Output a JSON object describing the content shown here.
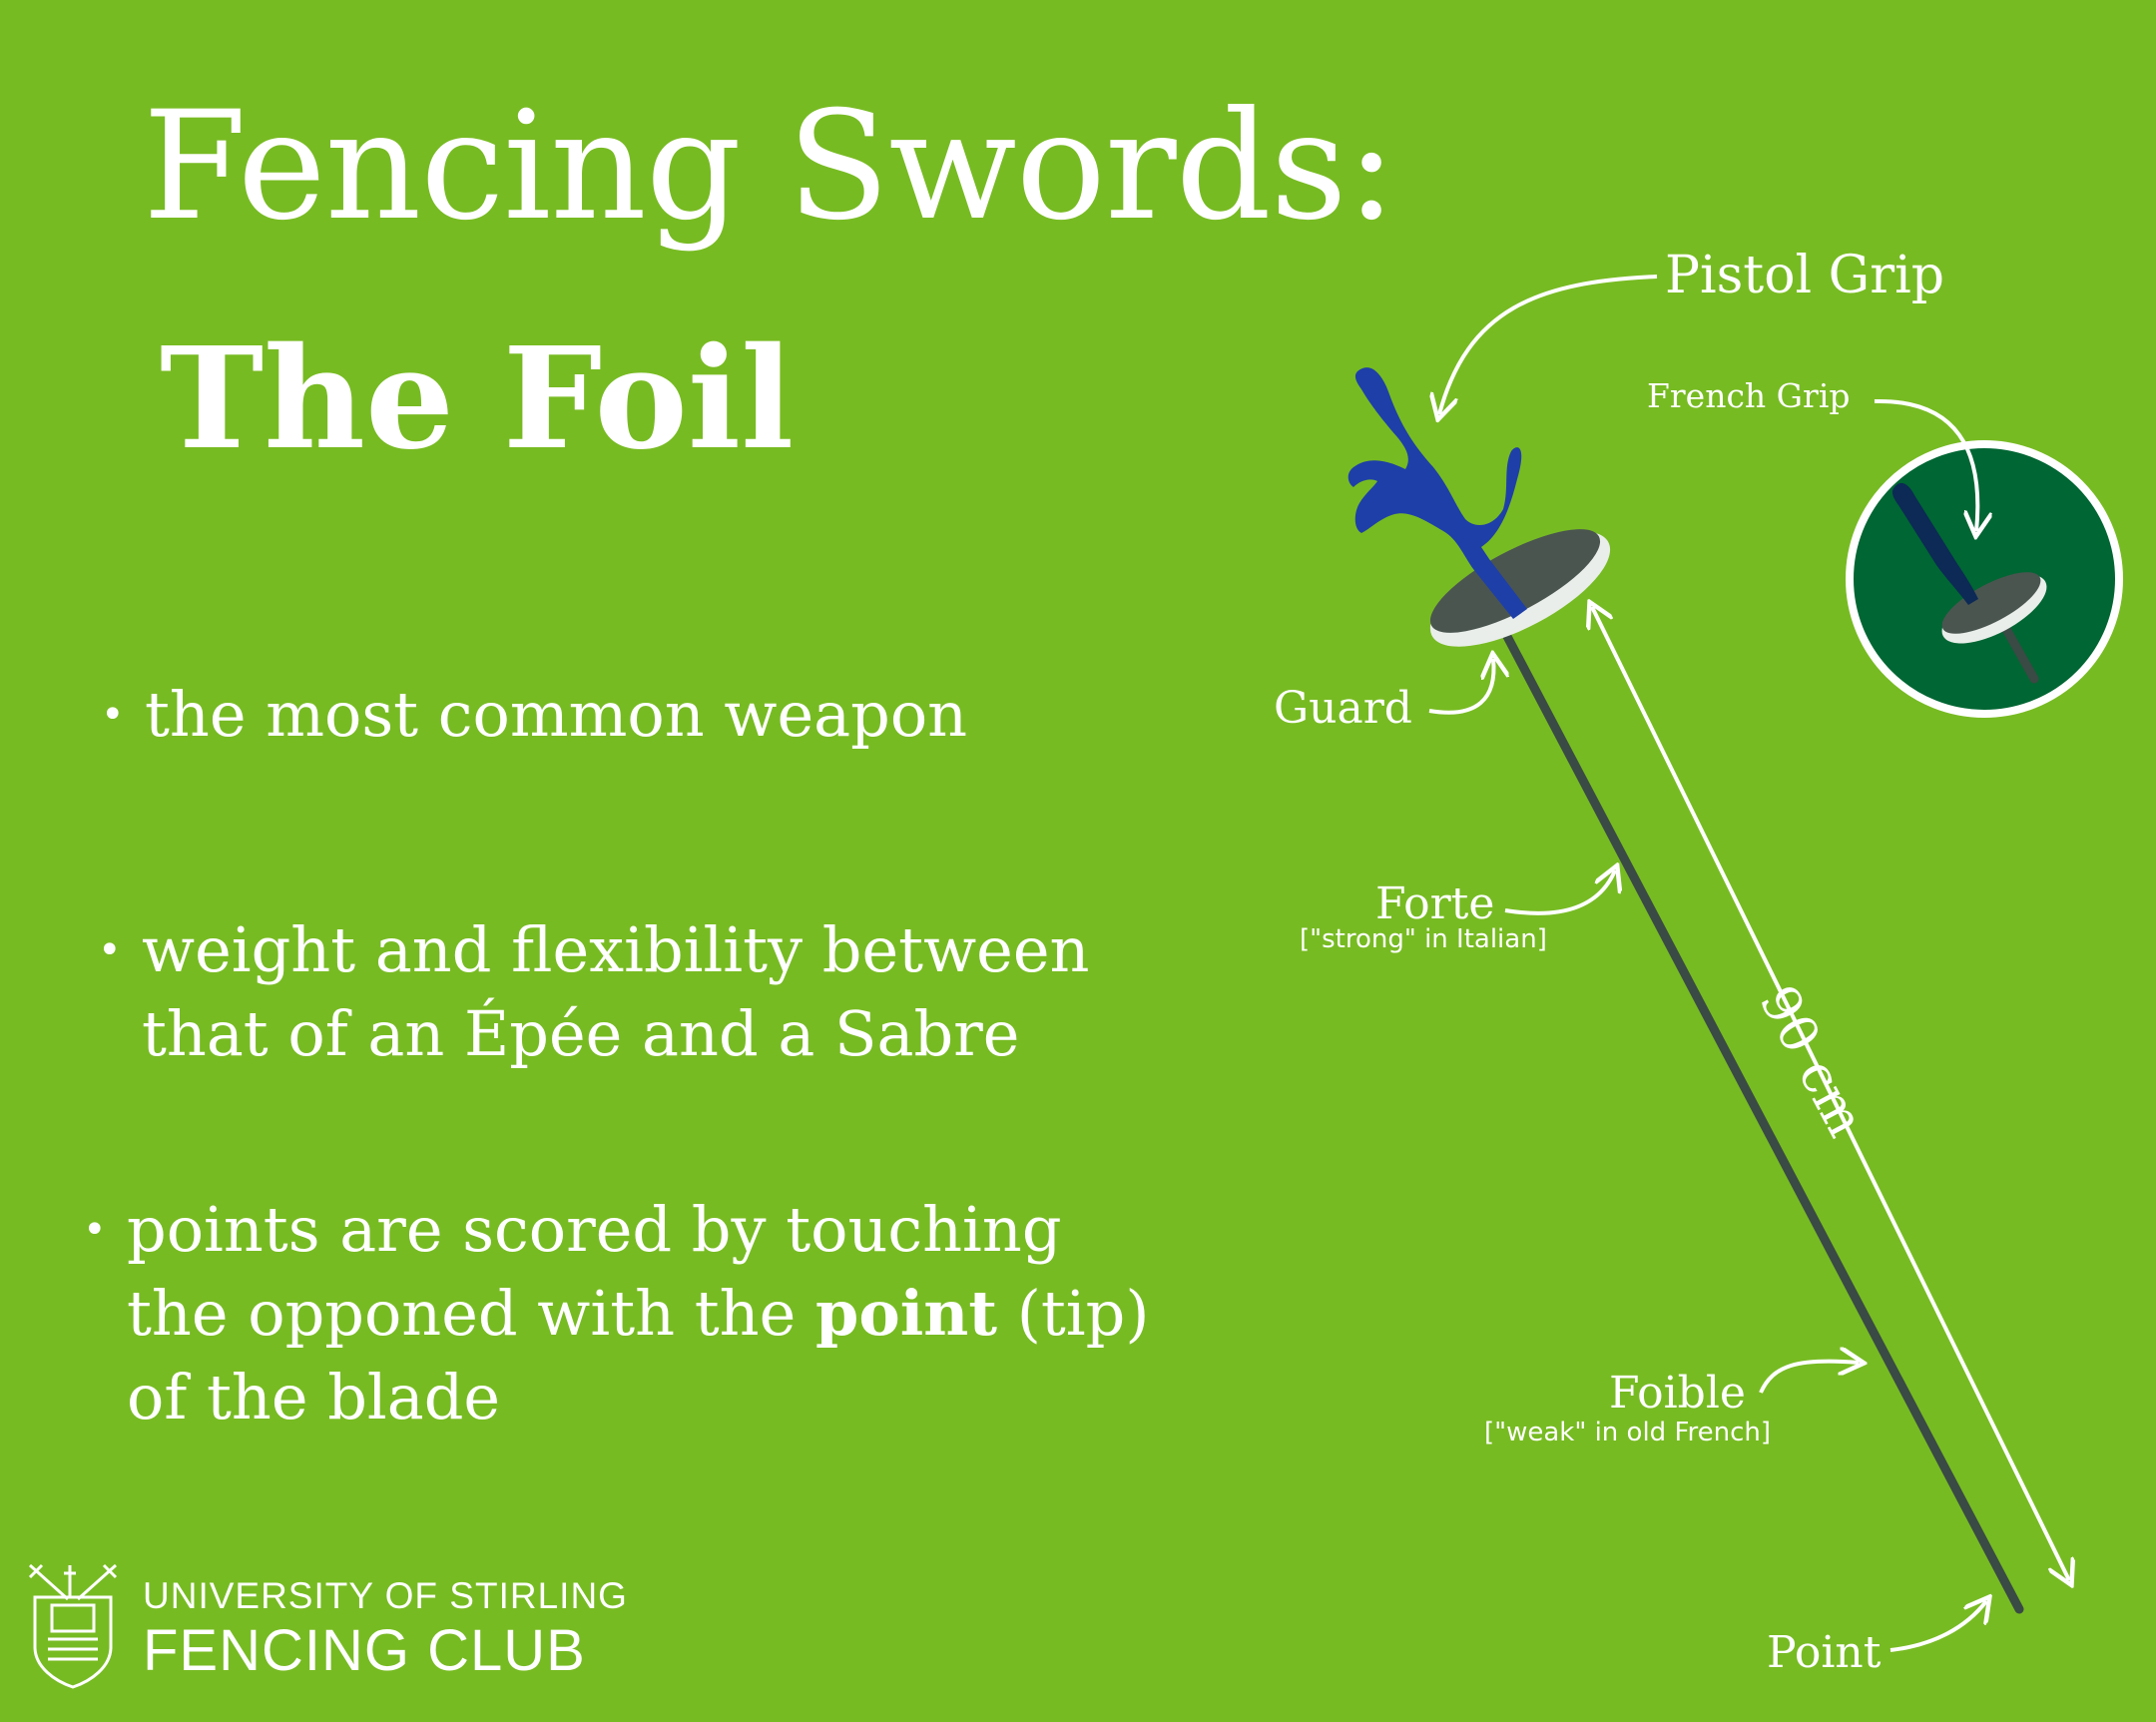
{
  "title": {
    "line1": "Fencing Swords:",
    "line2": "The Foil"
  },
  "bullets": [
    {
      "lines": [
        "the most common weapon"
      ]
    },
    {
      "lines": [
        "weight and flexibility between",
        "that of an Épée and a Sabre"
      ]
    },
    {
      "pre": "points are scored by touching",
      "line2_pre": "the opponed with the ",
      "bold": "point",
      "line2_post": " (tip)",
      "line3": "of the blade"
    }
  ],
  "bullet_symbol": "•",
  "diagram": {
    "pistol_grip": "Pistol Grip",
    "french_grip": "French Grip",
    "guard": "Guard",
    "forte": "Forte",
    "forte_note": "[\"strong\" in Italian]",
    "length": "90 cm",
    "foible": "Foible",
    "foible_note": "[\"weak\" in old French]",
    "point": "Point"
  },
  "club": {
    "line1": "UNIVERSITY OF STIRLING",
    "line2": "FENCING CLUB"
  },
  "colors": {
    "background": "#77bb22",
    "grip_blue": "#1e3fa8",
    "blade": "#3a4a44",
    "circle_green": "#006633",
    "guard_gray": "#4a5550",
    "white": "#ffffff"
  },
  "icons": {
    "club_crest": "crossed-swords-crest-icon"
  }
}
